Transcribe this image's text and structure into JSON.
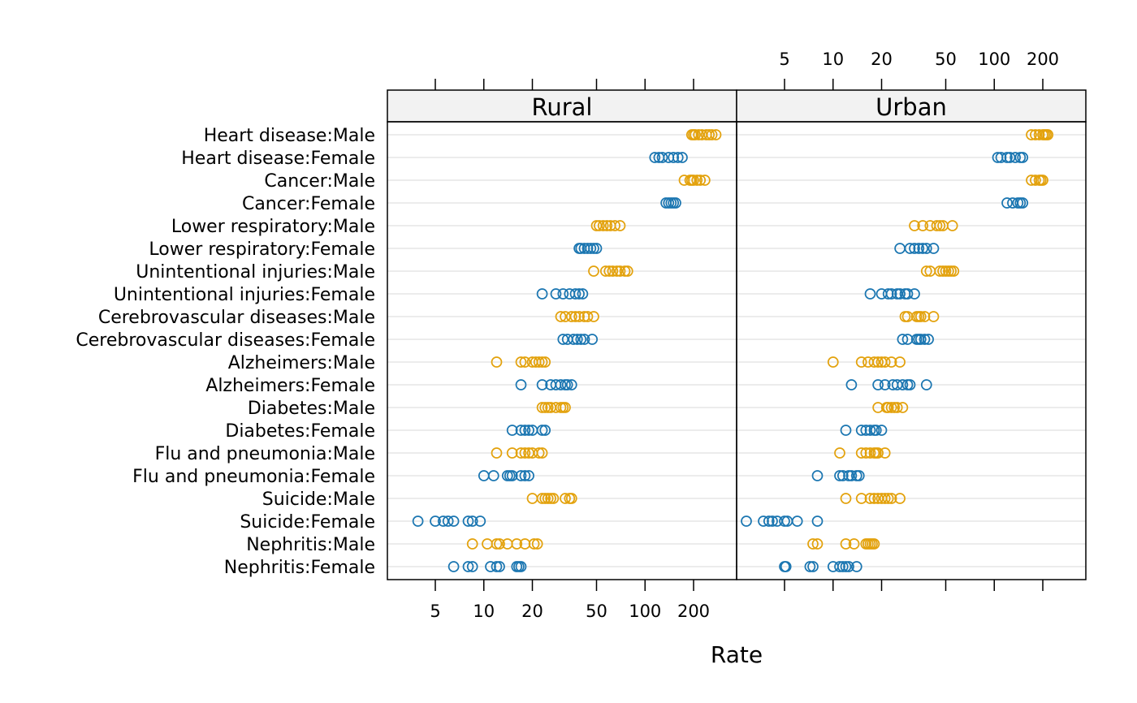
{
  "chart_data": {
    "type": "dotplot",
    "xlabel": "Rate",
    "x_scale": "log",
    "x_ticks": [
      5,
      10,
      20,
      50,
      100,
      200
    ],
    "grid": "horizontal",
    "colors": {
      "Male": "#e3a20d",
      "Female": "#1b76b1"
    },
    "panels": [
      {
        "name": "Rural",
        "categories": [
          {
            "label": "Heart disease:Male",
            "sex": "Male",
            "values": [
              195,
              200,
              205,
              215,
              225,
              240,
              250,
              260,
              275
            ]
          },
          {
            "label": "Heart disease:Female",
            "sex": "Female",
            "values": [
              115,
              122,
              128,
              140,
              150,
              160,
              170
            ]
          },
          {
            "label": "Cancer:Male",
            "sex": "Male",
            "values": [
              175,
              190,
              195,
              200,
              210,
              220,
              235
            ]
          },
          {
            "label": "Cancer:Female",
            "sex": "Female",
            "values": [
              135,
              140,
              145,
              150,
              155
            ]
          },
          {
            "label": "Lower respiratory:Male",
            "sex": "Male",
            "values": [
              50,
              52,
              55,
              58,
              61,
              65,
              70
            ]
          },
          {
            "label": "Lower respiratory:Female",
            "sex": "Female",
            "values": [
              39,
              40,
              42,
              44,
              46,
              48,
              50
            ]
          },
          {
            "label": "Unintentional injuries:Male",
            "sex": "Male",
            "values": [
              48,
              57,
              60,
              63,
              67,
              70,
              75,
              78
            ]
          },
          {
            "label": "Unintentional injuries:Female",
            "sex": "Female",
            "values": [
              23,
              28,
              31,
              34,
              37,
              39,
              41
            ]
          },
          {
            "label": "Cerebrovascular diseases:Male",
            "sex": "Male",
            "values": [
              30,
              32,
              35,
              37,
              39,
              42,
              44,
              48
            ]
          },
          {
            "label": "Cerebrovascular diseases:Female",
            "sex": "Female",
            "values": [
              31,
              33,
              36,
              38,
              40,
              42,
              47
            ]
          },
          {
            "label": "Alzheimers:Male",
            "sex": "Male",
            "values": [
              12,
              17,
              18,
              20,
              21,
              22,
              23,
              24
            ]
          },
          {
            "label": "Alzheimers:Female",
            "sex": "Female",
            "values": [
              17,
              23,
              26,
              28,
              30,
              32,
              33,
              35
            ]
          },
          {
            "label": "Diabetes:Male",
            "sex": "Male",
            "values": [
              23,
              24,
              25,
              26,
              28,
              30,
              31,
              32
            ]
          },
          {
            "label": "Diabetes:Female",
            "sex": "Female",
            "values": [
              15,
              17,
              18,
              19,
              20,
              23,
              24
            ]
          },
          {
            "label": "Flu and pneumonia:Male",
            "sex": "Male",
            "values": [
              12,
              15,
              17,
              18,
              19,
              20,
              22,
              23
            ]
          },
          {
            "label": "Flu and pneumonia:Female",
            "sex": "Female",
            "values": [
              10,
              11.5,
              14,
              14.5,
              15,
              17,
              18,
              19
            ]
          },
          {
            "label": "Suicide:Male",
            "sex": "Male",
            "values": [
              20,
              23,
              24,
              25,
              26,
              27,
              32,
              34,
              35
            ]
          },
          {
            "label": "Suicide:Female",
            "sex": "Female",
            "values": [
              3.9,
              5,
              5.6,
              6,
              6.5,
              8,
              8.5,
              9.5
            ]
          },
          {
            "label": "Nephritis:Male",
            "sex": "Male",
            "values": [
              8.5,
              10.5,
              12,
              12.5,
              14,
              16,
              18,
              20.5,
              21.5
            ]
          },
          {
            "label": "Nephritis:Female",
            "sex": "Female",
            "values": [
              6.5,
              8,
              8.5,
              11,
              12,
              12.5,
              16,
              16.5,
              17
            ]
          }
        ]
      },
      {
        "name": "Urban",
        "categories": [
          {
            "label": "Heart disease:Male",
            "sex": "Male",
            "values": [
              170,
              180,
              190,
              200,
              205,
              210,
              215
            ]
          },
          {
            "label": "Heart disease:Female",
            "sex": "Female",
            "values": [
              105,
              110,
              120,
              125,
              135,
              145,
              150
            ]
          },
          {
            "label": "Cancer:Male",
            "sex": "Male",
            "values": [
              170,
              180,
              190,
              195,
              200
            ]
          },
          {
            "label": "Cancer:Female",
            "sex": "Female",
            "values": [
              120,
              130,
              140,
              145,
              150
            ]
          },
          {
            "label": "Lower respiratory:Male",
            "sex": "Male",
            "values": [
              32,
              36,
              40,
              44,
              46,
              48,
              55
            ]
          },
          {
            "label": "Lower respiratory:Female",
            "sex": "Female",
            "values": [
              26,
              30,
              32,
              34,
              36,
              38,
              42
            ]
          },
          {
            "label": "Unintentional injuries:Male",
            "sex": "Male",
            "values": [
              38,
              40,
              46,
              48,
              50,
              52,
              54,
              56
            ]
          },
          {
            "label": "Unintentional injuries:Female",
            "sex": "Female",
            "values": [
              17,
              20,
              22,
              23,
              25,
              26,
              28,
              29,
              32
            ]
          },
          {
            "label": "Cerebrovascular diseases:Male",
            "sex": "Male",
            "values": [
              28,
              29,
              33,
              34,
              35,
              37,
              42
            ]
          },
          {
            "label": "Cerebrovascular diseases:Female",
            "sex": "Female",
            "values": [
              27,
              29,
              33,
              34,
              35,
              37,
              39
            ]
          },
          {
            "label": "Alzheimers:Male",
            "sex": "Male",
            "values": [
              10,
              15,
              16.5,
              18,
              19,
              20,
              21,
              23,
              26
            ]
          },
          {
            "label": "Alzheimers:Female",
            "sex": "Female",
            "values": [
              13,
              19,
              21,
              23.5,
              25,
              27,
              29,
              30,
              38
            ]
          },
          {
            "label": "Diabetes:Male",
            "sex": "Male",
            "values": [
              19,
              21.5,
              22,
              23,
              24,
              25,
              27
            ]
          },
          {
            "label": "Diabetes:Female",
            "sex": "Female",
            "values": [
              12,
              15,
              16,
              17,
              18,
              18.5,
              20
            ]
          },
          {
            "label": "Flu and pneumonia:Male",
            "sex": "Male",
            "values": [
              11,
              15,
              16,
              17,
              18,
              18.5,
              19,
              21
            ]
          },
          {
            "label": "Flu and pneumonia:Female",
            "sex": "Female",
            "values": [
              8,
              11,
              11.5,
              12.5,
              13,
              14,
              14.5
            ]
          },
          {
            "label": "Suicide:Male",
            "sex": "Male",
            "values": [
              12,
              15,
              17,
              18,
              19,
              20,
              21,
              22,
              23,
              26
            ]
          },
          {
            "label": "Suicide:Female",
            "sex": "Female",
            "values": [
              2.9,
              3.7,
              4,
              4.2,
              4.5,
              5,
              5.2,
              6,
              8
            ]
          },
          {
            "label": "Nephritis:Male",
            "sex": "Male",
            "values": [
              7.5,
              8,
              12,
              13.5,
              16,
              16.5,
              17,
              17.5,
              18
            ]
          },
          {
            "label": "Nephritis:Female",
            "sex": "Female",
            "values": [
              5,
              5.1,
              7.2,
              7.5,
              10,
              11,
              11.5,
              12,
              12.5,
              14
            ]
          }
        ]
      }
    ]
  }
}
